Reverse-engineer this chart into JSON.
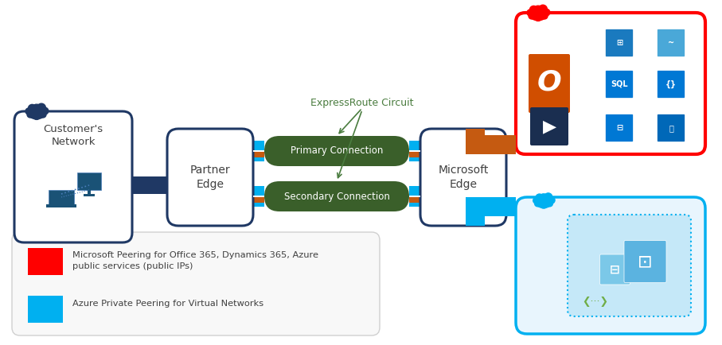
{
  "bg_color": "#ffffff",
  "box_fill_color": "#ffffff",
  "partner_edge_text": "Partner\nEdge",
  "microsoft_edge_text": "Microsoft\nEdge",
  "customer_network_text": "Customer's\nNetwork",
  "primary_connection_text": "Primary Connection",
  "secondary_connection_text": "Secondary Connection",
  "expressroute_label": "ExpressRoute Circuit",
  "green_dark": "#3a5f2a",
  "orange_arrow": "#c55a11",
  "blue_arrow": "#00b0f0",
  "red_color": "#ff0000",
  "navy_color": "#1f3864",
  "dark_navy": "#1f3864",
  "legend_text1_line1": "Microsoft Peering for Office 365, Dynamics 365, Azure",
  "legend_text1_line2": "public services (public IPs)",
  "legend_text2": "Azure Private Peering for Virtual Networks",
  "text_color": "#404040",
  "office_orange": "#d04e00",
  "powerbi_dark": "#1a2e50",
  "icon_blue": "#0078d4"
}
